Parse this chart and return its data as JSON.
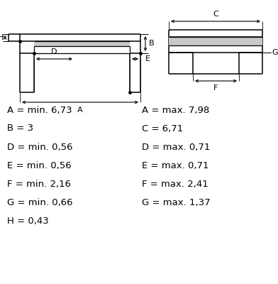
{
  "bg_color": "#ffffff",
  "line_color": "#000000",
  "fill_color": "#c8c8c8",
  "text_color": "#000000",
  "left_labels": [
    "A = min. 6,73",
    "B = 3",
    "D = min. 0,56",
    "E = min. 0,56",
    "F = min. 2,16",
    "G = min. 0,66",
    "H = 0,43"
  ],
  "right_labels": [
    "A = max. 7,98",
    "C = 6,71",
    "D = max. 0,71",
    "E = max. 0,71",
    "F = max. 2,41",
    "G = max. 1,37"
  ],
  "label_font_size": 9.5,
  "dim_font_size": 8.0
}
